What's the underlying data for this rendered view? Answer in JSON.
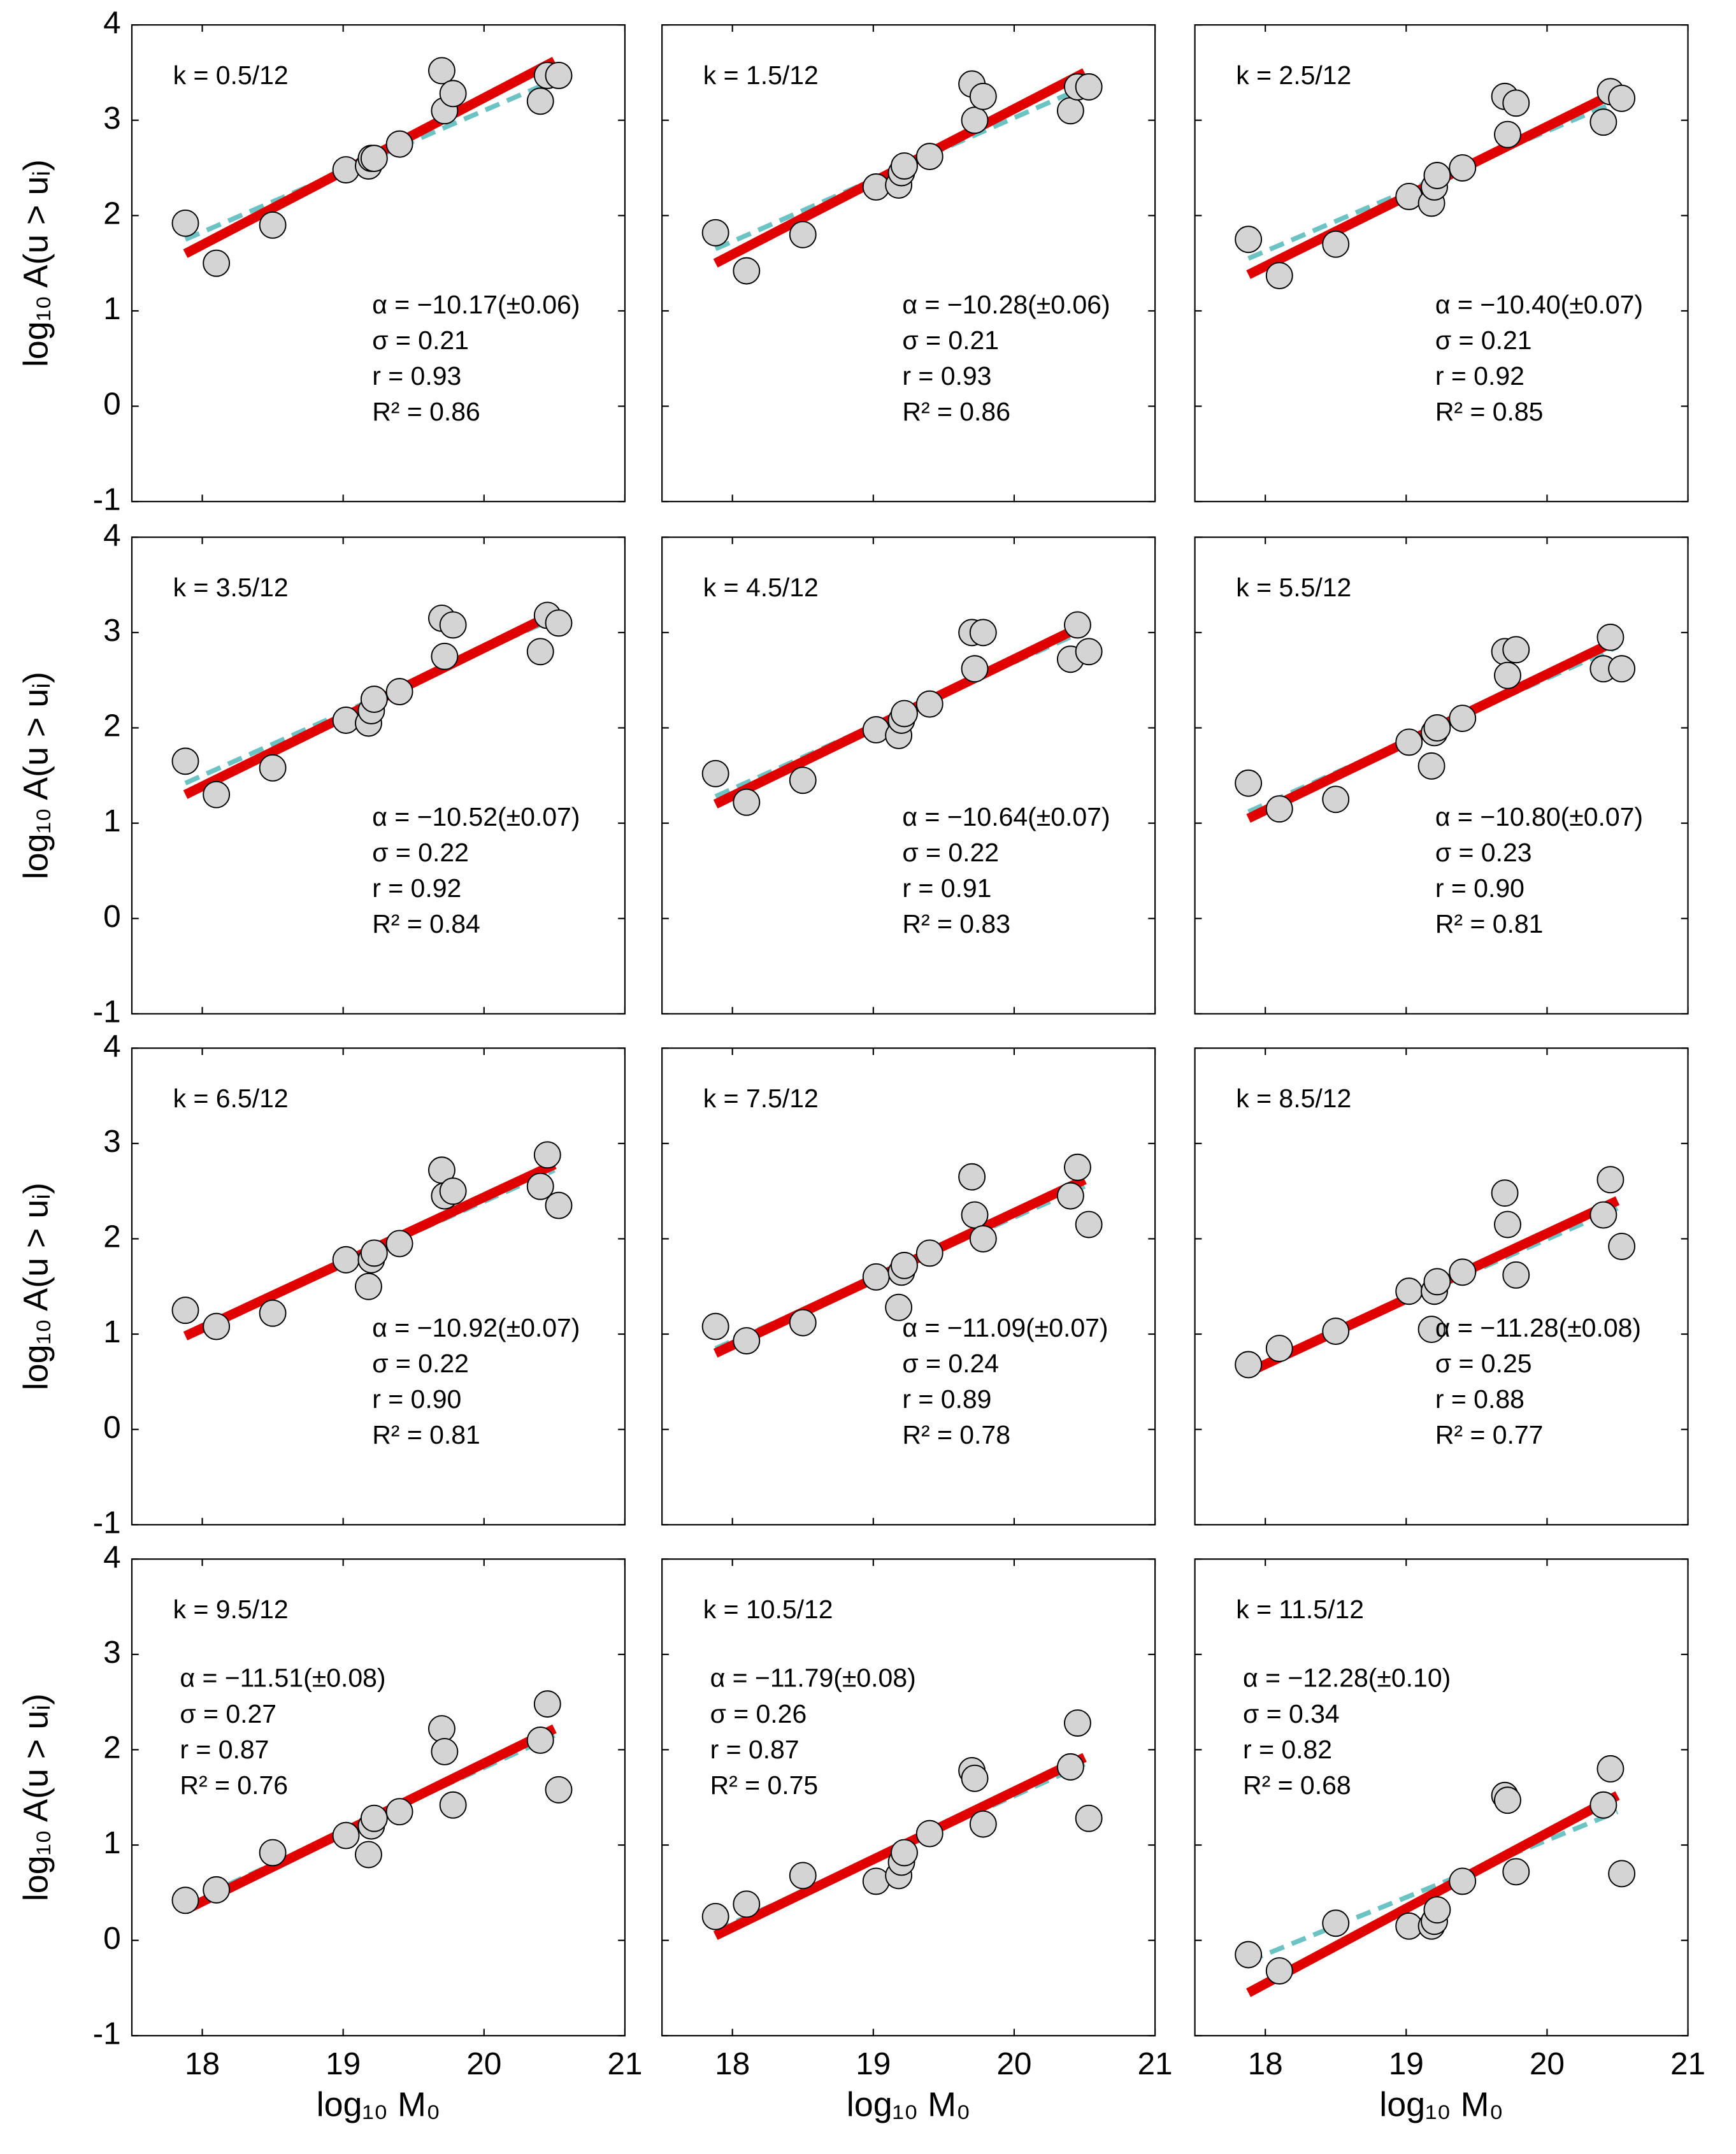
{
  "chart_data": [
    {
      "type": "scatter",
      "ylabel": "log₁₀ A(u > uᵢ)",
      "annotations": [
        "k = 0.5/12",
        "α = −10.17(±0.06)",
        "σ = 0.21",
        "r = 0.93",
        "R² = 0.86"
      ],
      "x": [
        17.88,
        18.1,
        18.5,
        19.02,
        19.18,
        19.2,
        19.22,
        19.4,
        19.7,
        19.72,
        19.78,
        20.4,
        20.45,
        20.53
      ],
      "y": [
        1.92,
        1.5,
        1.9,
        2.48,
        2.52,
        2.6,
        2.6,
        2.75,
        3.52,
        3.1,
        3.28,
        3.2,
        3.47,
        3.47
      ],
      "fit": {
        "x": [
          17.88,
          20.5
        ],
        "y": [
          1.6,
          3.62
        ],
        "color": "#e00000"
      },
      "dashed": {
        "x": [
          17.88,
          20.5
        ],
        "y": [
          1.75,
          3.42
        ],
        "color": "#6cc3c3"
      },
      "color": "#d4d4d4",
      "xlim": [
        17.5,
        21
      ],
      "ylim": [
        -1,
        4
      ],
      "xticks": [
        18,
        19,
        20,
        21
      ],
      "yticks": [
        -1,
        0,
        1,
        2,
        3,
        4
      ]
    },
    {
      "type": "scatter",
      "annotations": [
        "k = 1.5/12",
        "α = −10.28(±0.06)",
        "σ = 0.21",
        "r = 0.93",
        "R² = 0.86"
      ],
      "x": [
        17.88,
        18.1,
        18.5,
        19.02,
        19.18,
        19.2,
        19.22,
        19.4,
        19.7,
        19.72,
        19.78,
        20.4,
        20.45,
        20.53
      ],
      "y": [
        1.82,
        1.42,
        1.8,
        2.3,
        2.32,
        2.45,
        2.52,
        2.62,
        3.38,
        3.0,
        3.25,
        3.1,
        3.35,
        3.35
      ],
      "fit": {
        "x": [
          17.88,
          20.5
        ],
        "y": [
          1.5,
          3.5
        ],
        "color": "#e00000"
      },
      "dashed": {
        "x": [
          17.88,
          20.5
        ],
        "y": [
          1.65,
          3.35
        ],
        "color": "#6cc3c3"
      },
      "color": "#d4d4d4",
      "xlim": [
        17.5,
        21
      ],
      "ylim": [
        -1,
        4
      ],
      "xticks": [
        18,
        19,
        20,
        21
      ],
      "yticks": [
        -1,
        0,
        1,
        2,
        3,
        4
      ]
    },
    {
      "type": "scatter",
      "annotations": [
        "k = 2.5/12",
        "α = −10.40(±0.07)",
        "σ = 0.21",
        "r = 0.92",
        "R² = 0.85"
      ],
      "x": [
        17.88,
        18.1,
        18.5,
        19.02,
        19.18,
        19.2,
        19.22,
        19.4,
        19.7,
        19.72,
        19.78,
        20.4,
        20.45,
        20.53
      ],
      "y": [
        1.75,
        1.37,
        1.7,
        2.2,
        2.13,
        2.3,
        2.42,
        2.5,
        3.25,
        2.85,
        3.18,
        2.98,
        3.3,
        3.23
      ],
      "fit": {
        "x": [
          17.88,
          20.5
        ],
        "y": [
          1.38,
          3.3
        ],
        "color": "#e00000"
      },
      "dashed": {
        "x": [
          17.88,
          20.5
        ],
        "y": [
          1.55,
          3.2
        ],
        "color": "#6cc3c3"
      },
      "color": "#d4d4d4",
      "xlim": [
        17.5,
        21
      ],
      "ylim": [
        -1,
        4
      ],
      "xticks": [
        18,
        19,
        20,
        21
      ],
      "yticks": [
        -1,
        0,
        1,
        2,
        3,
        4
      ]
    },
    {
      "type": "scatter",
      "ylabel": "log₁₀ A(u > uᵢ)",
      "annotations": [
        "k = 3.5/12",
        "α = −10.52(±0.07)",
        "σ = 0.22",
        "r = 0.92",
        "R² = 0.84"
      ],
      "x": [
        17.88,
        18.1,
        18.5,
        19.02,
        19.18,
        19.2,
        19.22,
        19.4,
        19.7,
        19.72,
        19.78,
        20.4,
        20.45,
        20.53
      ],
      "y": [
        1.65,
        1.3,
        1.58,
        2.08,
        2.05,
        2.18,
        2.3,
        2.38,
        3.15,
        2.75,
        3.08,
        2.8,
        3.18,
        3.1
      ],
      "fit": {
        "x": [
          17.88,
          20.5
        ],
        "y": [
          1.3,
          3.2
        ],
        "color": "#e00000"
      },
      "dashed": {
        "x": [
          17.88,
          20.5
        ],
        "y": [
          1.42,
          3.15
        ],
        "color": "#6cc3c3"
      },
      "color": "#d4d4d4",
      "xlim": [
        17.5,
        21
      ],
      "ylim": [
        -1,
        4
      ],
      "xticks": [
        18,
        19,
        20,
        21
      ],
      "yticks": [
        -1,
        0,
        1,
        2,
        3,
        4
      ]
    },
    {
      "type": "scatter",
      "annotations": [
        "k = 4.5/12",
        "α = −10.64(±0.07)",
        "σ = 0.22",
        "r = 0.91",
        "R² = 0.83"
      ],
      "x": [
        17.88,
        18.1,
        18.5,
        19.02,
        19.18,
        19.2,
        19.22,
        19.4,
        19.7,
        19.72,
        19.78,
        20.4,
        20.45,
        20.53
      ],
      "y": [
        1.52,
        1.22,
        1.45,
        1.98,
        1.92,
        2.08,
        2.15,
        2.25,
        3.0,
        2.62,
        3.0,
        2.72,
        3.08,
        2.8
      ],
      "fit": {
        "x": [
          17.88,
          20.5
        ],
        "y": [
          1.2,
          3.08
        ],
        "color": "#e00000"
      },
      "dashed": {
        "x": [
          17.88,
          20.5
        ],
        "y": [
          1.28,
          3.02
        ],
        "color": "#6cc3c3"
      },
      "color": "#d4d4d4",
      "xlim": [
        17.5,
        21
      ],
      "ylim": [
        -1,
        4
      ],
      "xticks": [
        18,
        19,
        20,
        21
      ],
      "yticks": [
        -1,
        0,
        1,
        2,
        3,
        4
      ]
    },
    {
      "type": "scatter",
      "annotations": [
        "k = 5.5/12",
        "α = −10.80(±0.07)",
        "σ = 0.23",
        "r = 0.90",
        "R² = 0.81"
      ],
      "x": [
        17.88,
        18.1,
        18.5,
        19.02,
        19.18,
        19.2,
        19.22,
        19.4,
        19.7,
        19.72,
        19.78,
        20.4,
        20.45,
        20.53
      ],
      "y": [
        1.42,
        1.15,
        1.25,
        1.85,
        1.6,
        1.95,
        2.0,
        2.1,
        2.8,
        2.55,
        2.82,
        2.62,
        2.95,
        2.62
      ],
      "fit": {
        "x": [
          17.88,
          20.5
        ],
        "y": [
          1.05,
          2.92
        ],
        "color": "#e00000"
      },
      "dashed": {
        "x": [
          17.88,
          20.5
        ],
        "y": [
          1.12,
          2.85
        ],
        "color": "#6cc3c3"
      },
      "color": "#d4d4d4",
      "xlim": [
        17.5,
        21
      ],
      "ylim": [
        -1,
        4
      ],
      "xticks": [
        18,
        19,
        20,
        21
      ],
      "yticks": [
        -1,
        0,
        1,
        2,
        3,
        4
      ]
    },
    {
      "type": "scatter",
      "ylabel": "log₁₀ A(u > uᵢ)",
      "annotations": [
        "k = 6.5/12",
        "α = −10.92(±0.07)",
        "σ = 0.22",
        "r = 0.90",
        "R² = 0.81"
      ],
      "x": [
        17.88,
        18.1,
        18.5,
        19.02,
        19.18,
        19.2,
        19.22,
        19.4,
        19.7,
        19.72,
        19.78,
        20.4,
        20.45,
        20.53
      ],
      "y": [
        1.25,
        1.08,
        1.22,
        1.78,
        1.5,
        1.78,
        1.85,
        1.95,
        2.72,
        2.45,
        2.5,
        2.55,
        2.88,
        2.35
      ],
      "fit": {
        "x": [
          17.88,
          20.5
        ],
        "y": [
          0.98,
          2.78
        ],
        "color": "#e00000"
      },
      "dashed": {
        "x": [
          17.88,
          20.5
        ],
        "y": [
          1.0,
          2.72
        ],
        "color": "#6cc3c3"
      },
      "color": "#d4d4d4",
      "xlim": [
        17.5,
        21
      ],
      "ylim": [
        -1,
        4
      ],
      "xticks": [
        18,
        19,
        20,
        21
      ],
      "yticks": [
        -1,
        0,
        1,
        2,
        3,
        4
      ]
    },
    {
      "type": "scatter",
      "annotations": [
        "k = 7.5/12",
        "α = −11.09(±0.07)",
        "σ = 0.24",
        "r = 0.89",
        "R² = 0.78"
      ],
      "x": [
        17.88,
        18.1,
        18.5,
        19.02,
        19.18,
        19.2,
        19.22,
        19.4,
        19.7,
        19.72,
        19.78,
        20.4,
        20.45,
        20.53
      ],
      "y": [
        1.08,
        0.93,
        1.12,
        1.6,
        1.28,
        1.65,
        1.72,
        1.85,
        2.65,
        2.25,
        2.0,
        2.45,
        2.75,
        2.15
      ],
      "fit": {
        "x": [
          17.88,
          20.5
        ],
        "y": [
          0.8,
          2.62
        ],
        "color": "#e00000"
      },
      "dashed": {
        "x": [
          17.88,
          20.5
        ],
        "y": [
          0.85,
          2.55
        ],
        "color": "#6cc3c3"
      },
      "color": "#d4d4d4",
      "xlim": [
        17.5,
        21
      ],
      "ylim": [
        -1,
        4
      ],
      "xticks": [
        18,
        19,
        20,
        21
      ],
      "yticks": [
        -1,
        0,
        1,
        2,
        3,
        4
      ]
    },
    {
      "type": "scatter",
      "annotations": [
        "k = 8.5/12",
        "α = −11.28(±0.08)",
        "σ = 0.25",
        "r = 0.88",
        "R² = 0.77"
      ],
      "x": [
        17.88,
        18.1,
        18.5,
        19.02,
        19.18,
        19.2,
        19.22,
        19.4,
        19.7,
        19.72,
        19.78,
        20.4,
        20.45,
        20.53
      ],
      "y": [
        0.68,
        0.85,
        1.03,
        1.45,
        1.05,
        1.45,
        1.55,
        1.65,
        2.48,
        2.15,
        1.62,
        2.25,
        2.62,
        1.92
      ],
      "fit": {
        "x": [
          17.88,
          20.5
        ],
        "y": [
          0.6,
          2.4
        ],
        "color": "#e00000"
      },
      "dashed": {
        "x": [
          17.88,
          20.5
        ],
        "y": [
          0.62,
          2.32
        ],
        "color": "#6cc3c3"
      },
      "color": "#d4d4d4",
      "xlim": [
        17.5,
        21
      ],
      "ylim": [
        -1,
        4
      ],
      "xticks": [
        18,
        19,
        20,
        21
      ],
      "yticks": [
        -1,
        0,
        1,
        2,
        3,
        4
      ]
    },
    {
      "type": "scatter",
      "ylabel": "log₁₀ A(u > uᵢ)",
      "xlabel": "log₁₀ M₀",
      "annotations": [
        "k = 9.5/12",
        "α = −11.51(±0.08)",
        "σ = 0.27",
        "r = 0.87",
        "R² = 0.76"
      ],
      "x": [
        17.88,
        18.1,
        18.5,
        19.02,
        19.18,
        19.2,
        19.22,
        19.4,
        19.7,
        19.72,
        19.78,
        20.4,
        20.45,
        20.53
      ],
      "y": [
        0.42,
        0.53,
        0.92,
        1.1,
        0.9,
        1.2,
        1.28,
        1.35,
        2.22,
        1.98,
        1.42,
        2.1,
        2.48,
        1.58
      ],
      "fit": {
        "x": [
          17.88,
          20.5
        ],
        "y": [
          0.32,
          2.22
        ],
        "color": "#e00000"
      },
      "dashed": {
        "x": [
          17.88,
          20.5
        ],
        "y": [
          0.38,
          2.15
        ],
        "color": "#6cc3c3"
      },
      "color": "#d4d4d4",
      "xlim": [
        17.5,
        21
      ],
      "ylim": [
        -1,
        4
      ],
      "xticks": [
        18,
        19,
        20,
        21
      ],
      "yticks": [
        -1,
        0,
        1,
        2,
        3,
        4
      ]
    },
    {
      "type": "scatter",
      "xlabel": "log₁₀ M₀",
      "annotations": [
        "k = 10.5/12",
        "α = −11.79(±0.08)",
        "σ = 0.26",
        "r = 0.87",
        "R² = 0.75"
      ],
      "x": [
        17.88,
        18.1,
        18.5,
        19.02,
        19.18,
        19.2,
        19.22,
        19.4,
        19.7,
        19.72,
        19.78,
        20.4,
        20.45,
        20.53
      ],
      "y": [
        0.25,
        0.38,
        0.68,
        0.62,
        0.68,
        0.82,
        0.92,
        1.12,
        1.78,
        1.7,
        1.22,
        1.82,
        2.28,
        1.28
      ],
      "fit": {
        "x": [
          17.88,
          20.5
        ],
        "y": [
          0.05,
          1.92
        ],
        "color": "#e00000"
      },
      "dashed": {
        "x": [
          17.88,
          20.5
        ],
        "y": [
          0.1,
          1.85
        ],
        "color": "#6cc3c3"
      },
      "color": "#d4d4d4",
      "xlim": [
        17.5,
        21
      ],
      "ylim": [
        -1,
        4
      ],
      "xticks": [
        18,
        19,
        20,
        21
      ],
      "yticks": [
        -1,
        0,
        1,
        2,
        3,
        4
      ]
    },
    {
      "type": "scatter",
      "xlabel": "log₁₀ M₀",
      "annotations": [
        "k = 11.5/12",
        "α = −12.28(±0.10)",
        "σ = 0.34",
        "r = 0.82",
        "R² = 0.68"
      ],
      "x": [
        17.88,
        18.1,
        18.5,
        19.02,
        19.18,
        19.2,
        19.22,
        19.4,
        19.7,
        19.72,
        19.78,
        20.4,
        20.45,
        20.53
      ],
      "y": [
        -0.15,
        -0.32,
        0.18,
        0.15,
        0.15,
        0.2,
        0.32,
        0.62,
        1.52,
        1.47,
        0.72,
        1.42,
        1.8,
        0.7
      ],
      "fit": {
        "x": [
          17.88,
          20.5
        ],
        "y": [
          -0.55,
          1.52
        ],
        "color": "#e00000"
      },
      "dashed": {
        "x": [
          17.88,
          20.5
        ],
        "y": [
          -0.22,
          1.35
        ],
        "color": "#6cc3c3"
      },
      "color": "#d4d4d4",
      "xlim": [
        17.5,
        21
      ],
      "ylim": [
        -1,
        4
      ],
      "xticks": [
        18,
        19,
        20,
        21
      ],
      "yticks": [
        -1,
        0,
        1,
        2,
        3,
        4
      ]
    }
  ]
}
